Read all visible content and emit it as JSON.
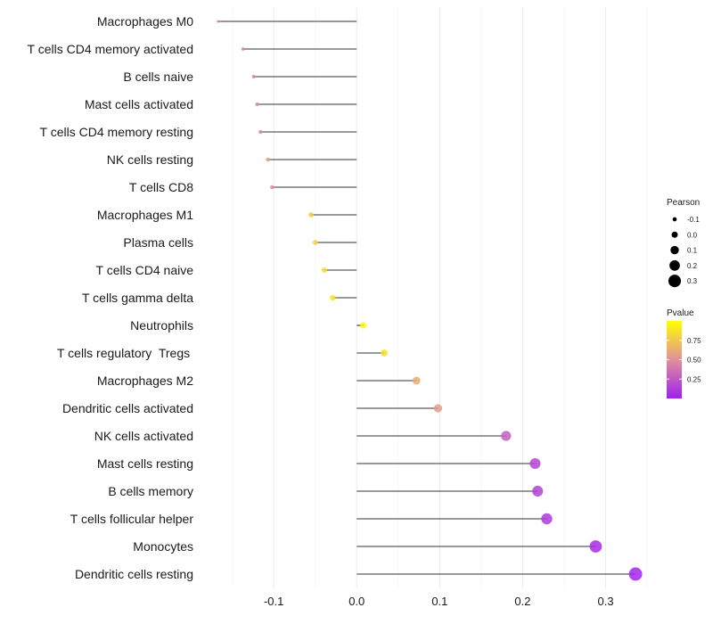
{
  "chart_data": {
    "type": "lollipop",
    "title": "",
    "xlabel": "",
    "ylabel": "",
    "xlim": [
      -0.185,
      0.352
    ],
    "x_ticks": [
      -0.1,
      0.0,
      0.1,
      0.2,
      0.3
    ],
    "x_tick_labels": [
      "-0.1",
      "0.0",
      "0.1",
      "0.2",
      "0.3"
    ],
    "grid": true,
    "categories": [
      "Macrophages M0",
      "T cells CD4 memory activated",
      "B cells naive",
      "Mast cells activated",
      "T cells CD4 memory resting",
      "NK cells resting",
      "T cells CD8",
      "Macrophages M1",
      "Plasma cells",
      "T cells CD4 naive",
      "T cells gamma delta",
      "Neutrophils",
      "T cells regulatory  Tregs ",
      "Macrophages M2",
      "Dendritic cells activated",
      "NK cells activated",
      "Mast cells resting",
      "B cells memory",
      "T cells follicular helper",
      "Monocytes",
      "Dendritic cells resting"
    ],
    "pearson": [
      -0.167,
      -0.137,
      -0.124,
      -0.12,
      -0.116,
      -0.107,
      -0.102,
      -0.055,
      -0.05,
      -0.039,
      -0.029,
      0.008,
      0.033,
      0.072,
      0.098,
      0.18,
      0.215,
      0.218,
      0.229,
      0.288,
      0.336
    ],
    "pvalue": [
      0.45,
      0.45,
      0.45,
      0.45,
      0.45,
      0.55,
      0.5,
      0.78,
      0.8,
      0.84,
      0.88,
      0.97,
      0.85,
      0.62,
      0.55,
      0.28,
      0.16,
      0.15,
      0.12,
      0.06,
      0.02
    ],
    "legends": {
      "size": {
        "title": "Pearson",
        "breaks": [
          -0.1,
          0.0,
          0.1,
          0.2,
          0.3
        ],
        "labels": [
          "-0.1",
          "0.0",
          "0.1",
          "0.2",
          "0.3"
        ],
        "placement": "right"
      },
      "color": {
        "title": "Pvalue",
        "breaks": [
          0.25,
          0.5,
          0.75
        ],
        "labels": [
          "0.25",
          "0.50",
          "0.75"
        ],
        "range": [
          0.0,
          1.0
        ],
        "colors": {
          "low": "#a020f0",
          "mid": "#e0909b",
          "high": "#ffff00"
        },
        "placement": "right"
      }
    }
  }
}
